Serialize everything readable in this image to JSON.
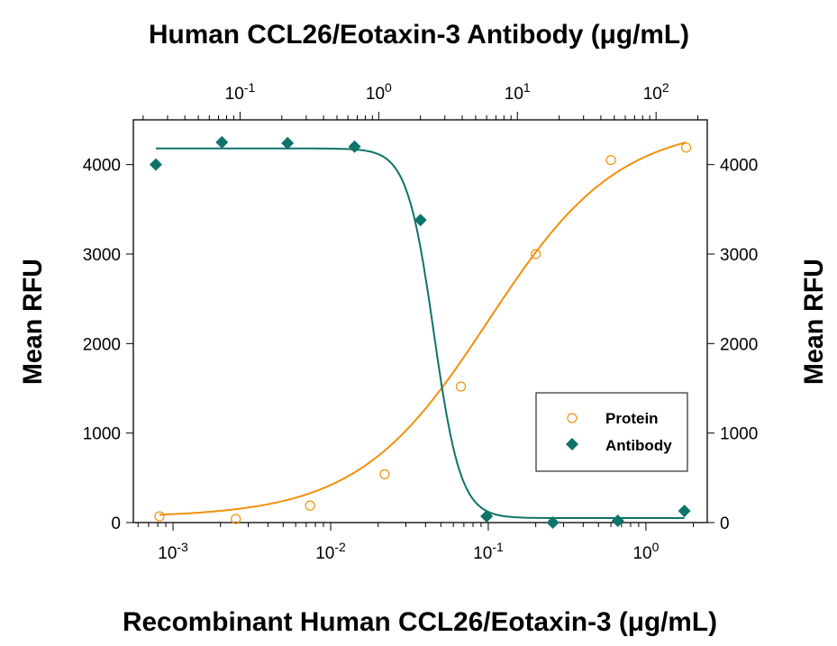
{
  "chart_data": {
    "type": "scatter",
    "title": "Human CCL26/Eotaxin-3 Antibody (μg/mL)",
    "xlabel": "Recombinant Human CCL26/Eotaxin-3 (μg/mL)",
    "ylabel": "Mean RFU",
    "ylabel_right": "Mean RFU",
    "x_scale": "log",
    "xlim": [
      0.00056,
      2.45
    ],
    "x_ticks": [
      0.001,
      0.01,
      0.1,
      1
    ],
    "x_tick_labels": [
      {
        "base": "10",
        "exp": "-3"
      },
      {
        "base": "10",
        "exp": "-2"
      },
      {
        "base": "10",
        "exp": "-1"
      },
      {
        "base": "10",
        "exp": "0"
      }
    ],
    "x_top_scale": "log",
    "x_top_lim": [
      0.017,
      234
    ],
    "x_top_ticks": [
      0.1,
      1,
      10,
      100
    ],
    "x_top_tick_labels": [
      {
        "base": "10",
        "exp": "-1"
      },
      {
        "base": "10",
        "exp": "0"
      },
      {
        "base": "10",
        "exp": "1"
      },
      {
        "base": "10",
        "exp": "2"
      }
    ],
    "ylim": [
      0,
      4500
    ],
    "y_ticks": [
      0,
      1000,
      2000,
      3000,
      4000
    ],
    "y_tick_labels": [
      "0",
      "1000",
      "2000",
      "3000",
      "4000"
    ],
    "grid": false,
    "legend_position": "bottom-right",
    "series": [
      {
        "name": "Protein",
        "axis": "bottom",
        "marker": "open-circle",
        "color": "#F0900A",
        "x": [
          0.00082,
          0.0025,
          0.0074,
          0.022,
          0.067,
          0.2,
          0.6,
          1.8
        ],
        "y": [
          70,
          40,
          190,
          540,
          1520,
          3000,
          4050,
          4190
        ],
        "fit": {
          "bottom": 60,
          "top": 4450,
          "ec50": 0.1,
          "hill": 1.05
        }
      },
      {
        "name": "Antibody",
        "axis": "top",
        "marker": "filled-diamond",
        "color": "#0E7369",
        "x": [
          0.0247,
          0.074,
          0.22,
          0.67,
          2,
          6,
          18,
          53,
          160
        ],
        "y": [
          4000,
          4250,
          4240,
          4200,
          3380,
          70,
          0,
          20,
          130
        ],
        "fit": {
          "bottom": 50,
          "top": 4180,
          "ec50": 2.5,
          "hill": -4.5
        }
      }
    ]
  }
}
